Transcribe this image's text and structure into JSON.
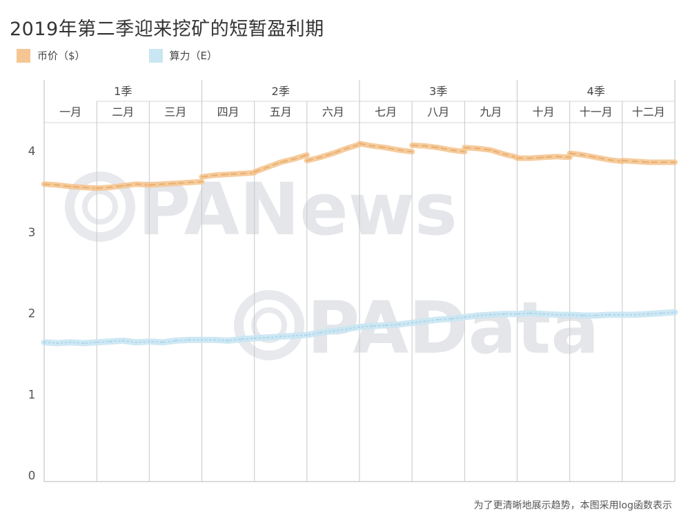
{
  "chart_data": {
    "type": "line",
    "title": "2019年第二季迎来挖矿的短暂盈利期",
    "footnote": "为了更清晰地展示趋势，本图采用log函数表示",
    "watermarks": [
      "PANews",
      "PAData"
    ],
    "quarters": [
      "1季",
      "2季",
      "3季",
      "4季"
    ],
    "categories": [
      "一月",
      "二月",
      "三月",
      "四月",
      "五月",
      "六月",
      "七月",
      "八月",
      "九月",
      "十月",
      "十一月",
      "十二月"
    ],
    "y_ticks": [
      "4",
      "3",
      "2",
      "1",
      "0"
    ],
    "ylim": [
      0,
      4.4
    ],
    "grid": true,
    "legend_position": "top-left",
    "series": [
      {
        "name": "币价（$）",
        "color": "#f5c694",
        "line_color": "#e9b070",
        "segments": [
          [
            [
              0.0,
              3.59
            ],
            [
              0.25,
              3.58
            ],
            [
              0.5,
              3.56
            ],
            [
              0.75,
              3.55
            ],
            [
              1.0,
              3.54
            ]
          ],
          [
            [
              1.0,
              3.54
            ],
            [
              1.25,
              3.55
            ],
            [
              1.5,
              3.57
            ],
            [
              1.75,
              3.59
            ],
            [
              2.0,
              3.58
            ]
          ],
          [
            [
              2.0,
              3.58
            ],
            [
              2.25,
              3.59
            ],
            [
              2.5,
              3.6
            ],
            [
              2.75,
              3.61
            ],
            [
              3.0,
              3.62
            ]
          ],
          [
            [
              3.0,
              3.68
            ],
            [
              3.25,
              3.7
            ],
            [
              3.5,
              3.71
            ],
            [
              3.75,
              3.72
            ],
            [
              4.0,
              3.73
            ]
          ],
          [
            [
              4.0,
              3.74
            ],
            [
              4.25,
              3.8
            ],
            [
              4.5,
              3.86
            ],
            [
              4.75,
              3.9
            ],
            [
              5.0,
              3.95
            ]
          ],
          [
            [
              5.0,
              3.88
            ],
            [
              5.25,
              3.92
            ],
            [
              5.5,
              3.97
            ],
            [
              5.75,
              4.03
            ],
            [
              6.0,
              4.08
            ]
          ],
          [
            [
              6.0,
              4.09
            ],
            [
              6.25,
              4.06
            ],
            [
              6.5,
              4.04
            ],
            [
              6.75,
              4.01
            ],
            [
              7.0,
              3.99
            ]
          ],
          [
            [
              7.0,
              4.07
            ],
            [
              7.25,
              4.06
            ],
            [
              7.5,
              4.04
            ],
            [
              7.75,
              4.01
            ],
            [
              8.0,
              3.99
            ]
          ],
          [
            [
              8.0,
              4.04
            ],
            [
              8.25,
              4.03
            ],
            [
              8.5,
              4.01
            ],
            [
              8.75,
              3.96
            ],
            [
              9.0,
              3.92
            ]
          ],
          [
            [
              9.0,
              3.91
            ],
            [
              9.25,
              3.91
            ],
            [
              9.5,
              3.92
            ],
            [
              9.75,
              3.93
            ],
            [
              10.0,
              3.92
            ]
          ],
          [
            [
              10.0,
              3.97
            ],
            [
              10.25,
              3.95
            ],
            [
              10.5,
              3.92
            ],
            [
              10.75,
              3.89
            ],
            [
              11.0,
              3.87
            ]
          ],
          [
            [
              11.0,
              3.88
            ],
            [
              11.25,
              3.87
            ],
            [
              11.5,
              3.86
            ],
            [
              11.75,
              3.86
            ],
            [
              12.0,
              3.86
            ]
          ]
        ]
      },
      {
        "name": "算力（E）",
        "color": "#c9e6f3",
        "line_color": "#a8d3ea",
        "segments": [
          [
            [
              0.0,
              1.64
            ],
            [
              0.25,
              1.63
            ],
            [
              0.5,
              1.64
            ],
            [
              0.75,
              1.63
            ],
            [
              1.0,
              1.64
            ],
            [
              1.25,
              1.65
            ],
            [
              1.5,
              1.66
            ],
            [
              1.75,
              1.64
            ],
            [
              2.0,
              1.65
            ],
            [
              2.25,
              1.64
            ],
            [
              2.5,
              1.66
            ],
            [
              2.75,
              1.67
            ],
            [
              3.0,
              1.67
            ],
            [
              3.25,
              1.67
            ],
            [
              3.5,
              1.66
            ],
            [
              3.75,
              1.68
            ],
            [
              4.0,
              1.69
            ],
            [
              4.25,
              1.7
            ],
            [
              4.5,
              1.71
            ],
            [
              4.75,
              1.72
            ],
            [
              5.0,
              1.73
            ],
            [
              5.25,
              1.76
            ],
            [
              5.5,
              1.78
            ],
            [
              5.75,
              1.8
            ],
            [
              6.0,
              1.83
            ],
            [
              6.25,
              1.84
            ],
            [
              6.5,
              1.85
            ],
            [
              6.75,
              1.86
            ],
            [
              7.0,
              1.88
            ],
            [
              7.25,
              1.9
            ],
            [
              7.5,
              1.92
            ],
            [
              7.75,
              1.93
            ],
            [
              8.0,
              1.95
            ],
            [
              8.25,
              1.97
            ],
            [
              8.5,
              1.98
            ],
            [
              8.75,
              1.99
            ],
            [
              9.0,
              1.99
            ],
            [
              9.25,
              2.0
            ],
            [
              9.5,
              1.99
            ],
            [
              9.75,
              1.98
            ],
            [
              10.0,
              1.98
            ],
            [
              10.25,
              1.97
            ],
            [
              10.5,
              1.97
            ],
            [
              10.75,
              1.98
            ],
            [
              11.0,
              1.98
            ],
            [
              11.25,
              1.98
            ],
            [
              11.5,
              1.99
            ],
            [
              11.75,
              2.0
            ],
            [
              12.0,
              2.01
            ]
          ]
        ]
      }
    ]
  }
}
